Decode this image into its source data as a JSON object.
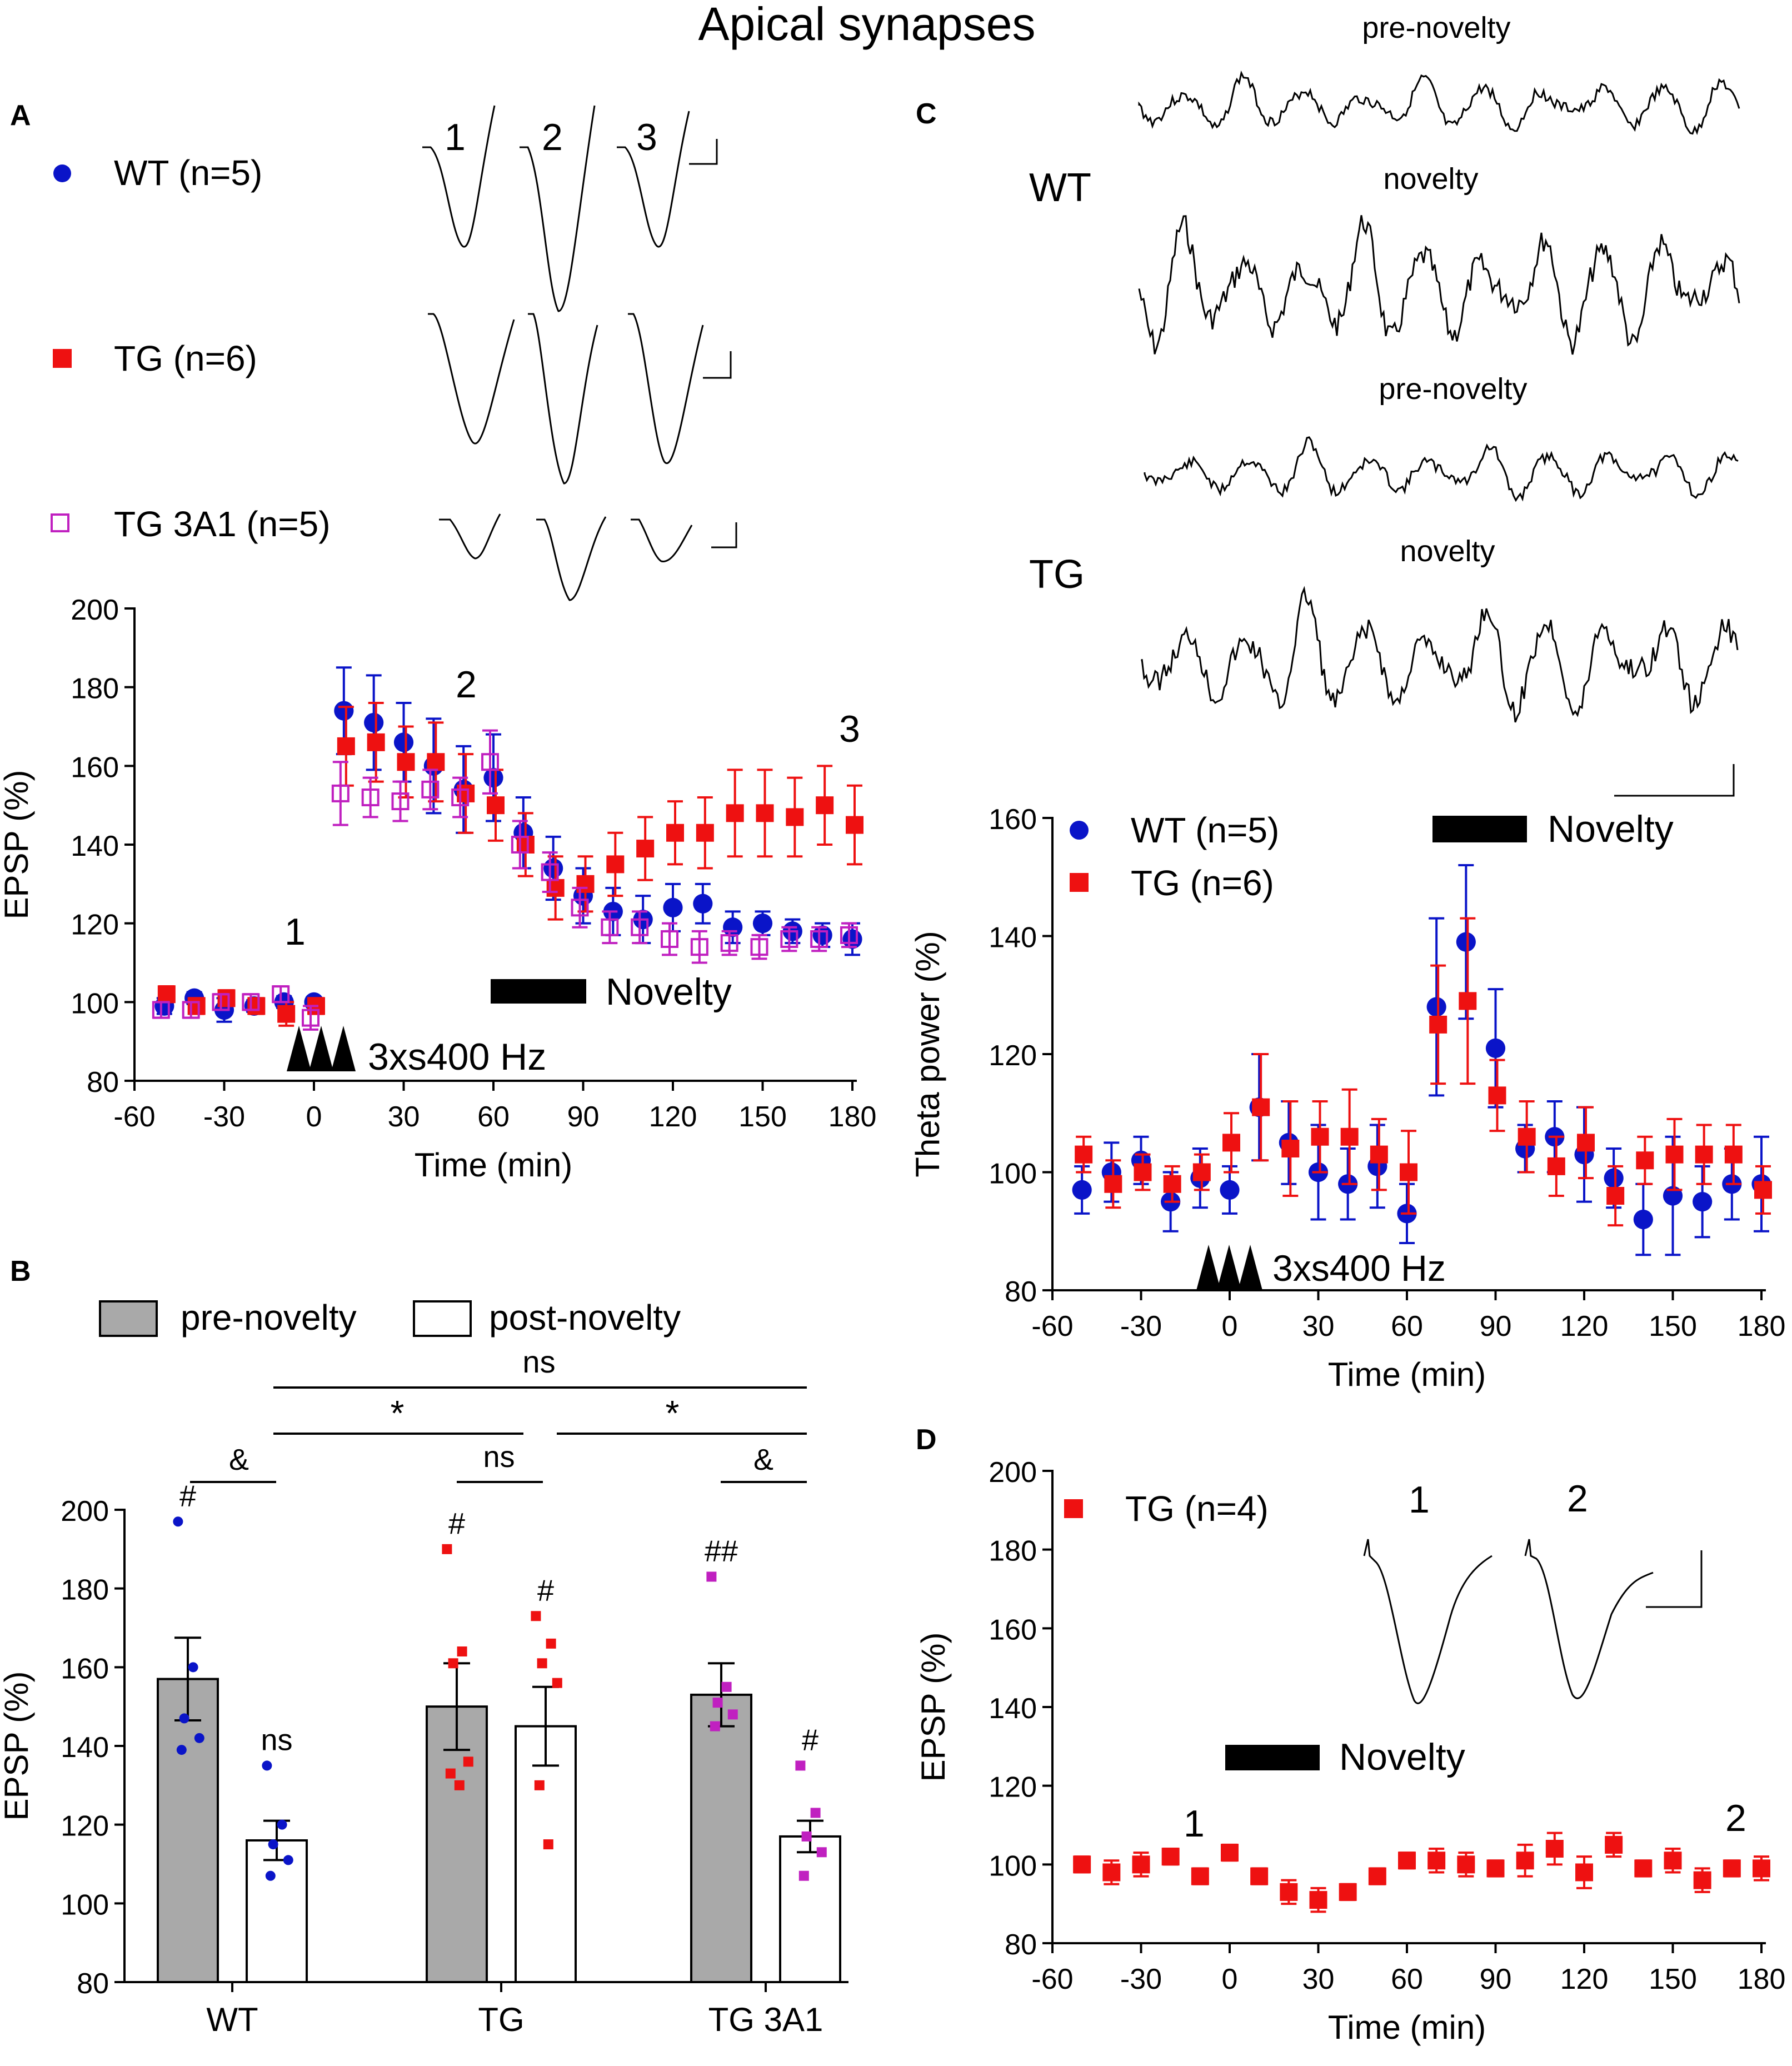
{
  "figure": {
    "title": "Apical synapses",
    "panel_labels": [
      "A",
      "B",
      "C",
      "D"
    ],
    "stim_label": "3xs400 Hz",
    "novelty_label": "Novelty"
  },
  "colors": {
    "wt": "#0a14c8",
    "tg": "#ee1111",
    "tg3a1": "#c020c0",
    "bar_pre": "#a9a9a9"
  },
  "chart_data": [
    {
      "id": "A",
      "type": "scatter",
      "title": "",
      "xlabel": "Time (min)",
      "ylabel": "EPSP (%)",
      "xlim": [
        -60,
        180
      ],
      "ylim": [
        80,
        200
      ],
      "xticks": [
        "-60",
        "-30",
        "0",
        "30",
        "60",
        "90",
        "120",
        "150",
        "180"
      ],
      "yticks": [
        "80",
        "100",
        "120",
        "140",
        "160",
        "180",
        "200"
      ],
      "timepoint_labels": [
        "1",
        "2",
        "3"
      ],
      "series": [
        {
          "name": "WT (n=5)",
          "marker": "circle",
          "color": "#0a14c8",
          "x": [
            -50,
            -40,
            -30,
            -20,
            -10,
            0,
            10,
            20,
            30,
            40,
            50,
            60,
            70,
            80,
            90,
            100,
            110,
            120,
            130,
            140,
            150,
            160,
            170,
            180
          ],
          "y": [
            99,
            101,
            98,
            99,
            100,
            100,
            174,
            171,
            166,
            160,
            154,
            157,
            143,
            134,
            127,
            123,
            121,
            124,
            125,
            119,
            120,
            118,
            117,
            116
          ],
          "err": [
            2,
            1.5,
            3,
            1.5,
            1.5,
            1,
            11,
            12,
            10,
            12,
            11,
            11,
            9,
            8,
            7,
            6,
            6,
            6,
            5,
            4,
            3,
            3,
            3,
            4
          ]
        },
        {
          "name": "TG (n=6)",
          "marker": "square",
          "color": "#ee1111",
          "x": [
            -50,
            -40,
            -30,
            -20,
            -10,
            0,
            10,
            20,
            30,
            40,
            50,
            60,
            70,
            80,
            90,
            100,
            110,
            120,
            130,
            140,
            150,
            160,
            170,
            180
          ],
          "y": [
            102,
            99,
            101,
            99,
            97,
            99,
            165,
            166,
            161,
            161,
            153,
            150,
            140,
            129,
            130,
            135,
            139,
            143,
            143,
            148,
            148,
            147,
            150,
            145
          ],
          "err": [
            2,
            2,
            2,
            2,
            3,
            2,
            10,
            10,
            9,
            10,
            10,
            9,
            8,
            8,
            7,
            8,
            8,
            8,
            9,
            11,
            11,
            10,
            10,
            10
          ]
        },
        {
          "name": "TG 3A1 (n=5)",
          "marker": "open-square",
          "color": "#c020c0",
          "x": [
            -50,
            -40,
            -30,
            -20,
            -10,
            0,
            10,
            20,
            30,
            40,
            50,
            60,
            70,
            80,
            90,
            100,
            110,
            120,
            130,
            140,
            150,
            160,
            170,
            180
          ],
          "y": [
            98,
            98,
            100,
            100,
            102,
            96,
            153,
            152,
            151,
            154,
            152,
            161,
            140,
            133,
            124,
            119,
            119,
            116,
            114,
            115,
            114,
            116,
            116,
            117
          ],
          "err": [
            2,
            2,
            2,
            2,
            2,
            3,
            8,
            5,
            5,
            5,
            5,
            8,
            6,
            5,
            5,
            4,
            4,
            4,
            4,
            3,
            3,
            3,
            3,
            3
          ]
        }
      ]
    },
    {
      "id": "B",
      "type": "bar",
      "title": "",
      "xlabel": "",
      "ylabel": "EPSP (%)",
      "ylim": [
        80,
        200
      ],
      "yticks": [
        "80",
        "100",
        "120",
        "140",
        "160",
        "180",
        "200"
      ],
      "categories": [
        "WT",
        "TG",
        "TG 3A1"
      ],
      "legend": [
        "pre-novelty",
        "post-novelty"
      ],
      "series": [
        {
          "name": "pre-novelty",
          "values": [
            157,
            150,
            153
          ],
          "err": [
            10.5,
            11,
            8
          ],
          "points": [
            [
              197,
              160,
              147,
              142,
              139
            ],
            [
              190,
              164,
              161,
              136,
              133,
              130
            ],
            [
              183,
              155,
              151,
              148,
              145
            ]
          ],
          "marks": [
            "#",
            "#",
            "##"
          ]
        },
        {
          "name": "post-novelty",
          "values": [
            116,
            145,
            117
          ],
          "err": [
            5,
            10,
            4
          ],
          "points": [
            [
              135,
              120,
              115,
              111,
              107
            ],
            [
              173,
              166,
              161,
              156,
              130,
              115
            ],
            [
              135,
              123,
              117,
              113,
              107
            ]
          ],
          "marks": [
            "ns",
            "#",
            "#"
          ]
        }
      ],
      "comparisons": [
        {
          "label": "&"
        },
        {
          "label": "ns"
        },
        {
          "label": "&"
        },
        {
          "label": "*"
        },
        {
          "label": "*"
        },
        {
          "label": "ns"
        }
      ]
    },
    {
      "id": "C",
      "type": "scatter",
      "title": "",
      "xlabel": "Time (min)",
      "ylabel": "Theta power (%)",
      "xlim": [
        -60,
        180
      ],
      "ylim": [
        80,
        160
      ],
      "xticks": [
        "-60",
        "-30",
        "0",
        "30",
        "60",
        "90",
        "120",
        "150",
        "180"
      ],
      "yticks": [
        "80",
        "100",
        "120",
        "140",
        "160"
      ],
      "traces_rows": [
        {
          "group": "WT",
          "pre": "pre-novelty",
          "post": "novelty"
        },
        {
          "group": "TG",
          "pre": "pre-novelty",
          "post": "novelty"
        }
      ],
      "series": [
        {
          "name": "WT (n=5)",
          "marker": "circle",
          "color": "#0a14c8",
          "x": [
            -50,
            -40,
            -30,
            -20,
            -10,
            0,
            10,
            20,
            30,
            40,
            50,
            60,
            70,
            80,
            90,
            100,
            110,
            120,
            130,
            140,
            150,
            160,
            170,
            180
          ],
          "y": [
            97,
            100,
            102,
            95,
            99,
            97,
            111,
            105,
            100,
            98,
            101,
            93,
            128,
            139,
            121,
            104,
            106,
            103,
            99,
            92,
            96,
            95,
            98,
            98
          ],
          "err": [
            4,
            5,
            4,
            5,
            5,
            4,
            9,
            7,
            8,
            6,
            7,
            5,
            15,
            13,
            10,
            4,
            6,
            8,
            5,
            6,
            10,
            6,
            6,
            8
          ]
        },
        {
          "name": "TG (n=6)",
          "marker": "square",
          "color": "#ee1111",
          "x": [
            -50,
            -40,
            -30,
            -20,
            -10,
            0,
            10,
            20,
            30,
            40,
            50,
            60,
            70,
            80,
            90,
            100,
            110,
            120,
            130,
            140,
            150,
            160,
            170,
            180
          ],
          "y": [
            103,
            98,
            100,
            98,
            100,
            105,
            111,
            104,
            106,
            106,
            103,
            100,
            125,
            129,
            113,
            106,
            101,
            105,
            96,
            102,
            103,
            103,
            103,
            97
          ],
          "err": [
            3,
            4,
            3,
            3,
            3,
            5,
            9,
            8,
            6,
            8,
            6,
            7,
            10,
            14,
            6,
            6,
            5,
            6,
            5,
            4,
            6,
            5,
            5,
            4
          ]
        }
      ]
    },
    {
      "id": "D",
      "type": "scatter",
      "title": "",
      "xlabel": "Time (min)",
      "ylabel": "EPSP (%)",
      "xlim": [
        -60,
        180
      ],
      "ylim": [
        80,
        200
      ],
      "xticks": [
        "-60",
        "-30",
        "0",
        "30",
        "60",
        "90",
        "120",
        "150",
        "180"
      ],
      "yticks": [
        "80",
        "100",
        "120",
        "140",
        "160",
        "180",
        "200"
      ],
      "timepoint_labels": [
        "1",
        "2"
      ],
      "series": [
        {
          "name": "TG (n=4)",
          "marker": "square",
          "color": "#ee1111",
          "x": [
            -50,
            -40,
            -30,
            -20,
            -10,
            0,
            10,
            20,
            30,
            40,
            50,
            60,
            70,
            80,
            90,
            100,
            110,
            120,
            130,
            140,
            150,
            160,
            170,
            180
          ],
          "y": [
            100,
            98,
            100,
            102,
            97,
            103,
            97,
            93,
            91,
            93,
            97,
            101,
            101,
            100,
            99,
            101,
            104,
            98,
            105,
            99,
            101,
            96,
            99,
            99
          ],
          "err": [
            2,
            3,
            3,
            2,
            2,
            2,
            2,
            3,
            3,
            2,
            2,
            2,
            3,
            3,
            2,
            4,
            4,
            4,
            3,
            2,
            3,
            3,
            2,
            3
          ]
        }
      ]
    }
  ]
}
